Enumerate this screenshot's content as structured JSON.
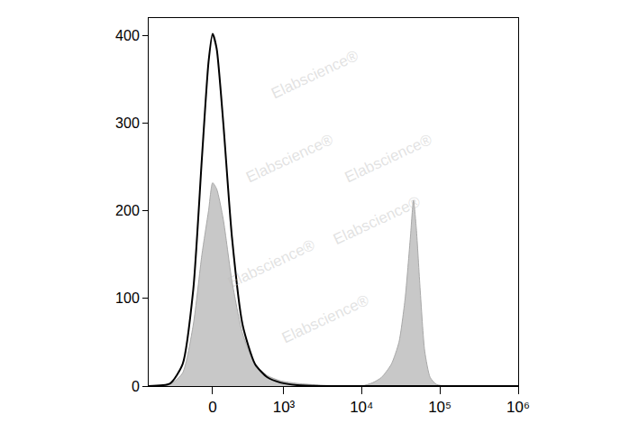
{
  "chart_data": {
    "type": "area",
    "x": [
      -800,
      -400,
      -250,
      -150,
      -80,
      -30,
      0,
      30,
      80,
      150,
      250,
      400,
      600,
      900,
      1500,
      3000,
      6000,
      10000,
      14000,
      18000,
      24000,
      30000,
      36000,
      42000,
      46000,
      50000,
      56000,
      64000,
      75000,
      90000,
      120000,
      1000000
    ],
    "series": [
      {
        "type": "area",
        "color": "#c8c8c8",
        "values": [
          0,
          2,
          15,
          70,
          150,
          200,
          232,
          225,
          190,
          120,
          60,
          25,
          12,
          6,
          3,
          1,
          0,
          0,
          4,
          10,
          25,
          50,
          100,
          170,
          212,
          180,
          110,
          40,
          10,
          2,
          0,
          0
        ]
      },
      {
        "type": "line",
        "color": "#000000",
        "values": [
          0,
          3,
          25,
          110,
          260,
          370,
          402,
          385,
          300,
          170,
          70,
          25,
          10,
          4,
          1,
          0,
          0,
          0,
          0,
          0,
          0,
          0,
          0,
          0,
          0,
          0,
          0,
          0,
          0,
          0,
          0,
          0
        ]
      }
    ],
    "xlim": [
      -800,
      1000000
    ],
    "xticks": [
      0,
      {
        "value": 1000,
        "label": "10³"
      },
      {
        "value": 10000,
        "label": "10⁴"
      },
      {
        "value": 100000,
        "label": "10⁵"
      },
      {
        "value": 1000000,
        "label": "10⁶"
      }
    ],
    "ylim": [
      0,
      420
    ],
    "yticks": [
      0,
      100,
      200,
      300,
      400
    ],
    "grid": false,
    "watermark": "Elabscience®"
  }
}
